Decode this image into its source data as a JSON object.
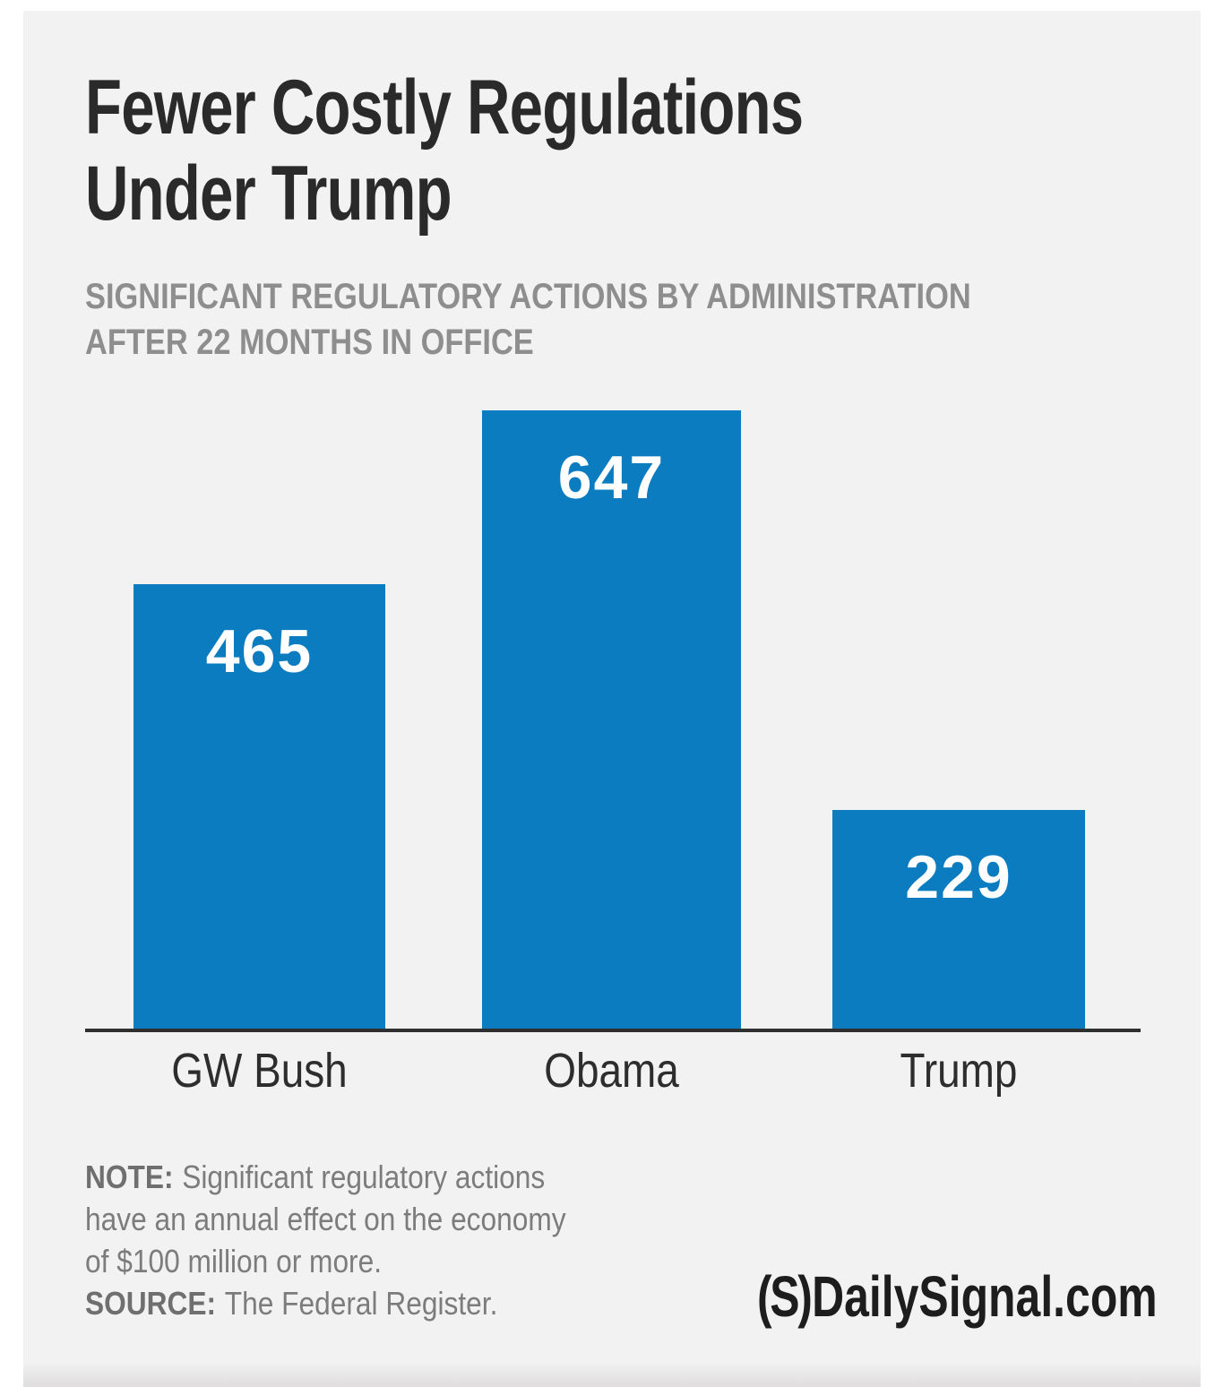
{
  "header": {
    "title_line1": "Fewer Costly Regulations",
    "title_line2": "Under Trump",
    "subtitle_line1": "SIGNIFICANT REGULATORY ACTIONS BY ADMINISTRATION",
    "subtitle_line2": "AFTER 22 MONTHS IN OFFICE"
  },
  "chart_data": {
    "type": "bar",
    "title": "Fewer Costly Regulations Under Trump",
    "subtitle": "Significant regulatory actions by administration after 22 months in office",
    "categories": [
      "GW Bush",
      "Obama",
      "Trump"
    ],
    "values": [
      465,
      647,
      229
    ],
    "xlabel": "",
    "ylabel": "",
    "ylim": [
      0,
      700
    ],
    "grid": false,
    "legend_position": "none",
    "bar_color": "#0b7cc0",
    "value_label_color": "#ffffff",
    "value_labels_inside_bars": true
  },
  "note": {
    "label": "NOTE:",
    "lines": [
      "Significant regulatory actions",
      "have an annual effect on the economy",
      "of $100 million or more."
    ]
  },
  "source": {
    "label": "SOURCE:",
    "text": "The Federal Register."
  },
  "footer": {
    "logo_mark": "(S)",
    "logo_text": "DailySignal.com"
  },
  "colors": {
    "background": "#f2f2f3",
    "page_margin": "#ffffff",
    "title": "#2a2a2a",
    "subtitle": "#8e8e8e",
    "axis": "#2f2f2f",
    "category_label": "#2d2d2d",
    "note_text": "#7c7c7c",
    "logo": "#1d1d1d",
    "bar": "#0b7cc0"
  }
}
